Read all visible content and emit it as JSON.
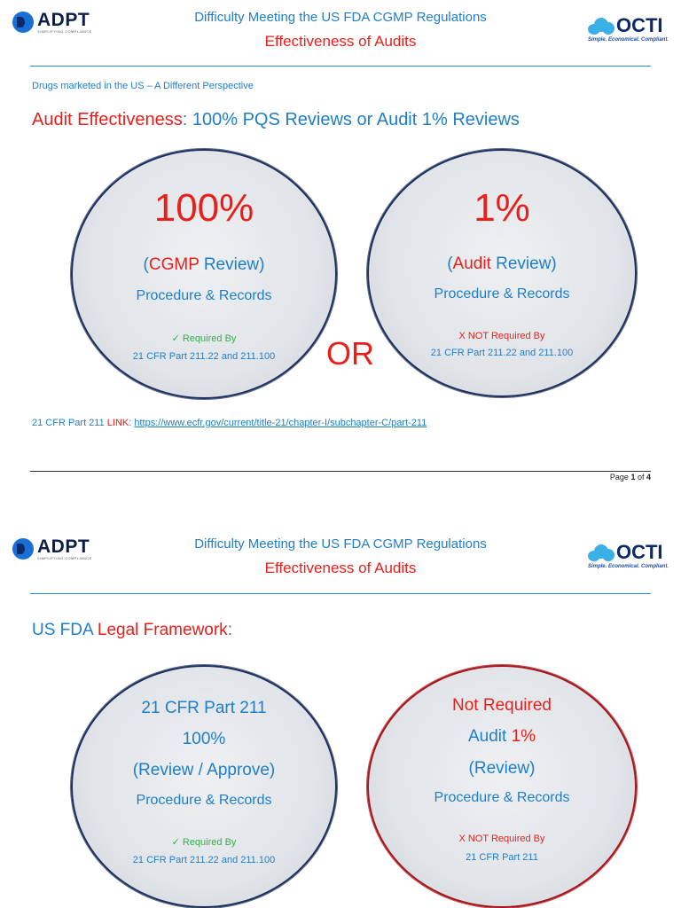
{
  "header": {
    "logo_left": {
      "name": "ADPT",
      "tagline": "SIMPLIFYING COMPLIANCE"
    },
    "logo_right": {
      "name": "OCTI",
      "tagline": "Simple. Economical. Compliant."
    },
    "title_line1": "Difficulty Meeting the US FDA CGMP Regulations",
    "title_line2": "Effectiveness of Audits"
  },
  "page1": {
    "subtitle": "Drugs marketed in the US – A Different Perspective",
    "heading_red": "Audit Effectiveness",
    "heading_colon": ":",
    "heading_blue": " 100% PQS Reviews or Audit 1% Reviews",
    "left_circle": {
      "big": "100%",
      "paren_open": "(",
      "label_red": "CGMP",
      "label_blue": " Review)",
      "line2": "Procedure & Records",
      "check": "✓",
      "required": " Required By",
      "cfr": "21 CFR Part 211.22 and 211.100"
    },
    "or_text": "OR",
    "right_circle": {
      "big": "1%",
      "paren_open": "(",
      "label_red": "Audit",
      "label_blue": " Review)",
      "line2": "Procedure & Records",
      "not_required": "X NOT Required By",
      "cfr": "21 CFR Part 211.22 and 211.100"
    },
    "link_prefix": "21 CFR Part 211 ",
    "link_label": "LINK",
    "link_colon": ": ",
    "link_url": "https://www.ecfr.gov/current/title-21/chapter-I/subchapter-C/part-211",
    "page_prefix": "Page ",
    "page_num": "1",
    "page_of": " of ",
    "page_total": "4"
  },
  "page2": {
    "heading_blue": "US FDA ",
    "heading_red": "Legal Framework",
    "heading_colon": ":",
    "left_circle": {
      "line1": "21 CFR Part 211",
      "line2": "100%",
      "line3": "(Review / Approve)",
      "line4": "Procedure & Records",
      "check": "✓",
      "required": " Required By",
      "cfr": "21 CFR Part 211.22 and 211.100"
    },
    "right_circle": {
      "line1": "Not Required",
      "line2_blue": "Audit ",
      "line2_red": "1%",
      "line3": "(Review)",
      "line4": "Procedure & Records",
      "not_required": "X NOT Required By",
      "cfr": "21 CFR Part 211"
    }
  },
  "colors": {
    "accent_blue": "#1f7ec9",
    "accent_red": "#e8201c",
    "check_green": "#2bb24c"
  }
}
